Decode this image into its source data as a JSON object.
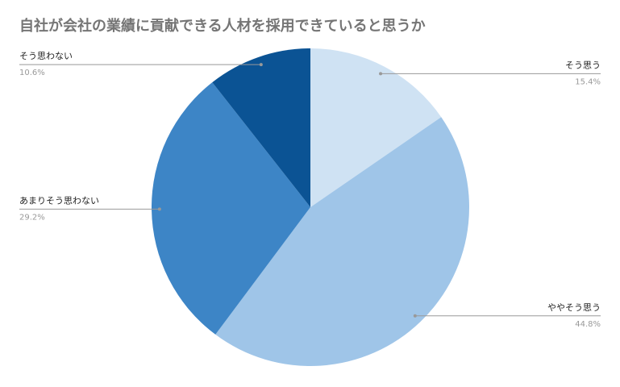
{
  "chart_data": {
    "type": "pie",
    "title": "自社が会社の業績に貢献できる人材を採用できていると思うか",
    "categories": [
      "そう思う",
      "ややそう思う",
      "あまりそう思わない",
      "そう思わない"
    ],
    "values": [
      15.4,
      44.8,
      29.2,
      10.6
    ],
    "value_labels": [
      "15.4%",
      "44.8%",
      "29.2%",
      "10.6%"
    ],
    "colors": [
      "#cfe2f3",
      "#9fc5e8",
      "#3d85c6",
      "#0b5394"
    ]
  }
}
